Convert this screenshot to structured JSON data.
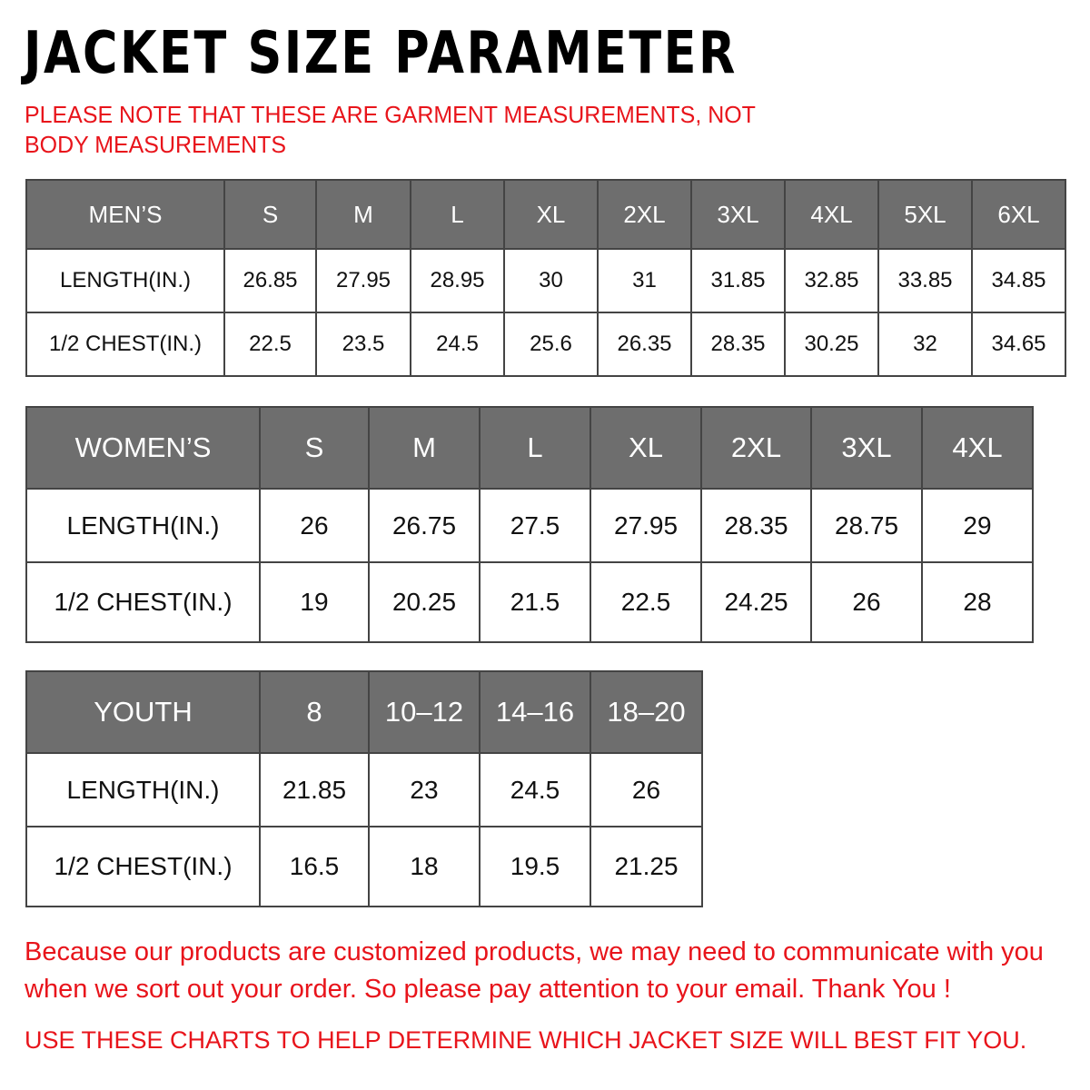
{
  "title": "JACKET  SIZE  PARAMETER",
  "note": "PLEASE NOTE THAT THESE ARE GARMENT MEASUREMENTS, NOT BODY MEASUREMENTS",
  "colors": {
    "header_bg": "#6e6e6e",
    "accent_red": "#e8141b"
  },
  "tables": {
    "men": {
      "label": "MEN’S",
      "sizes": [
        "S",
        "M",
        "L",
        "XL",
        "2XL",
        "3XL",
        "4XL",
        "5XL",
        "6XL"
      ],
      "rows": [
        {
          "label": "LENGTH(IN.)",
          "values": [
            "26.85",
            "27.95",
            "28.95",
            "30",
            "31",
            "31.85",
            "32.85",
            "33.85",
            "34.85"
          ]
        },
        {
          "label": "1/2 CHEST(IN.)",
          "values": [
            "22.5",
            "23.5",
            "24.5",
            "25.6",
            "26.35",
            "28.35",
            "30.25",
            "32",
            "34.65"
          ]
        }
      ]
    },
    "women": {
      "label": "WOMEN’S",
      "sizes": [
        "S",
        "M",
        "L",
        "XL",
        "2XL",
        "3XL",
        "4XL"
      ],
      "rows": [
        {
          "label": "LENGTH(IN.)",
          "values": [
            "26",
            "26.75",
            "27.5",
            "27.95",
            "28.35",
            "28.75",
            "29"
          ]
        },
        {
          "label": "1/2 CHEST(IN.)",
          "values": [
            "19",
            "20.25",
            "21.5",
            "22.5",
            "24.25",
            "26",
            "28"
          ]
        }
      ]
    },
    "youth": {
      "label": "YOUTH",
      "sizes": [
        "8",
        "10–12",
        "14–16",
        "18–20"
      ],
      "rows": [
        {
          "label": "LENGTH(IN.)",
          "values": [
            "21.85",
            "23",
            "24.5",
            "26"
          ]
        },
        {
          "label": "1/2 CHEST(IN.)",
          "values": [
            "16.5",
            "18",
            "19.5",
            "21.25"
          ]
        }
      ]
    }
  },
  "footer": {
    "message_line1": "Because our products are customized products, we may need to communicate with you",
    "message_line2": "when we sort out your order. So please pay attention to your email. Thank You !",
    "instruction": "USE THESE CHARTS TO HELP DETERMINE WHICH JACKET SIZE WILL BEST FIT YOU."
  }
}
